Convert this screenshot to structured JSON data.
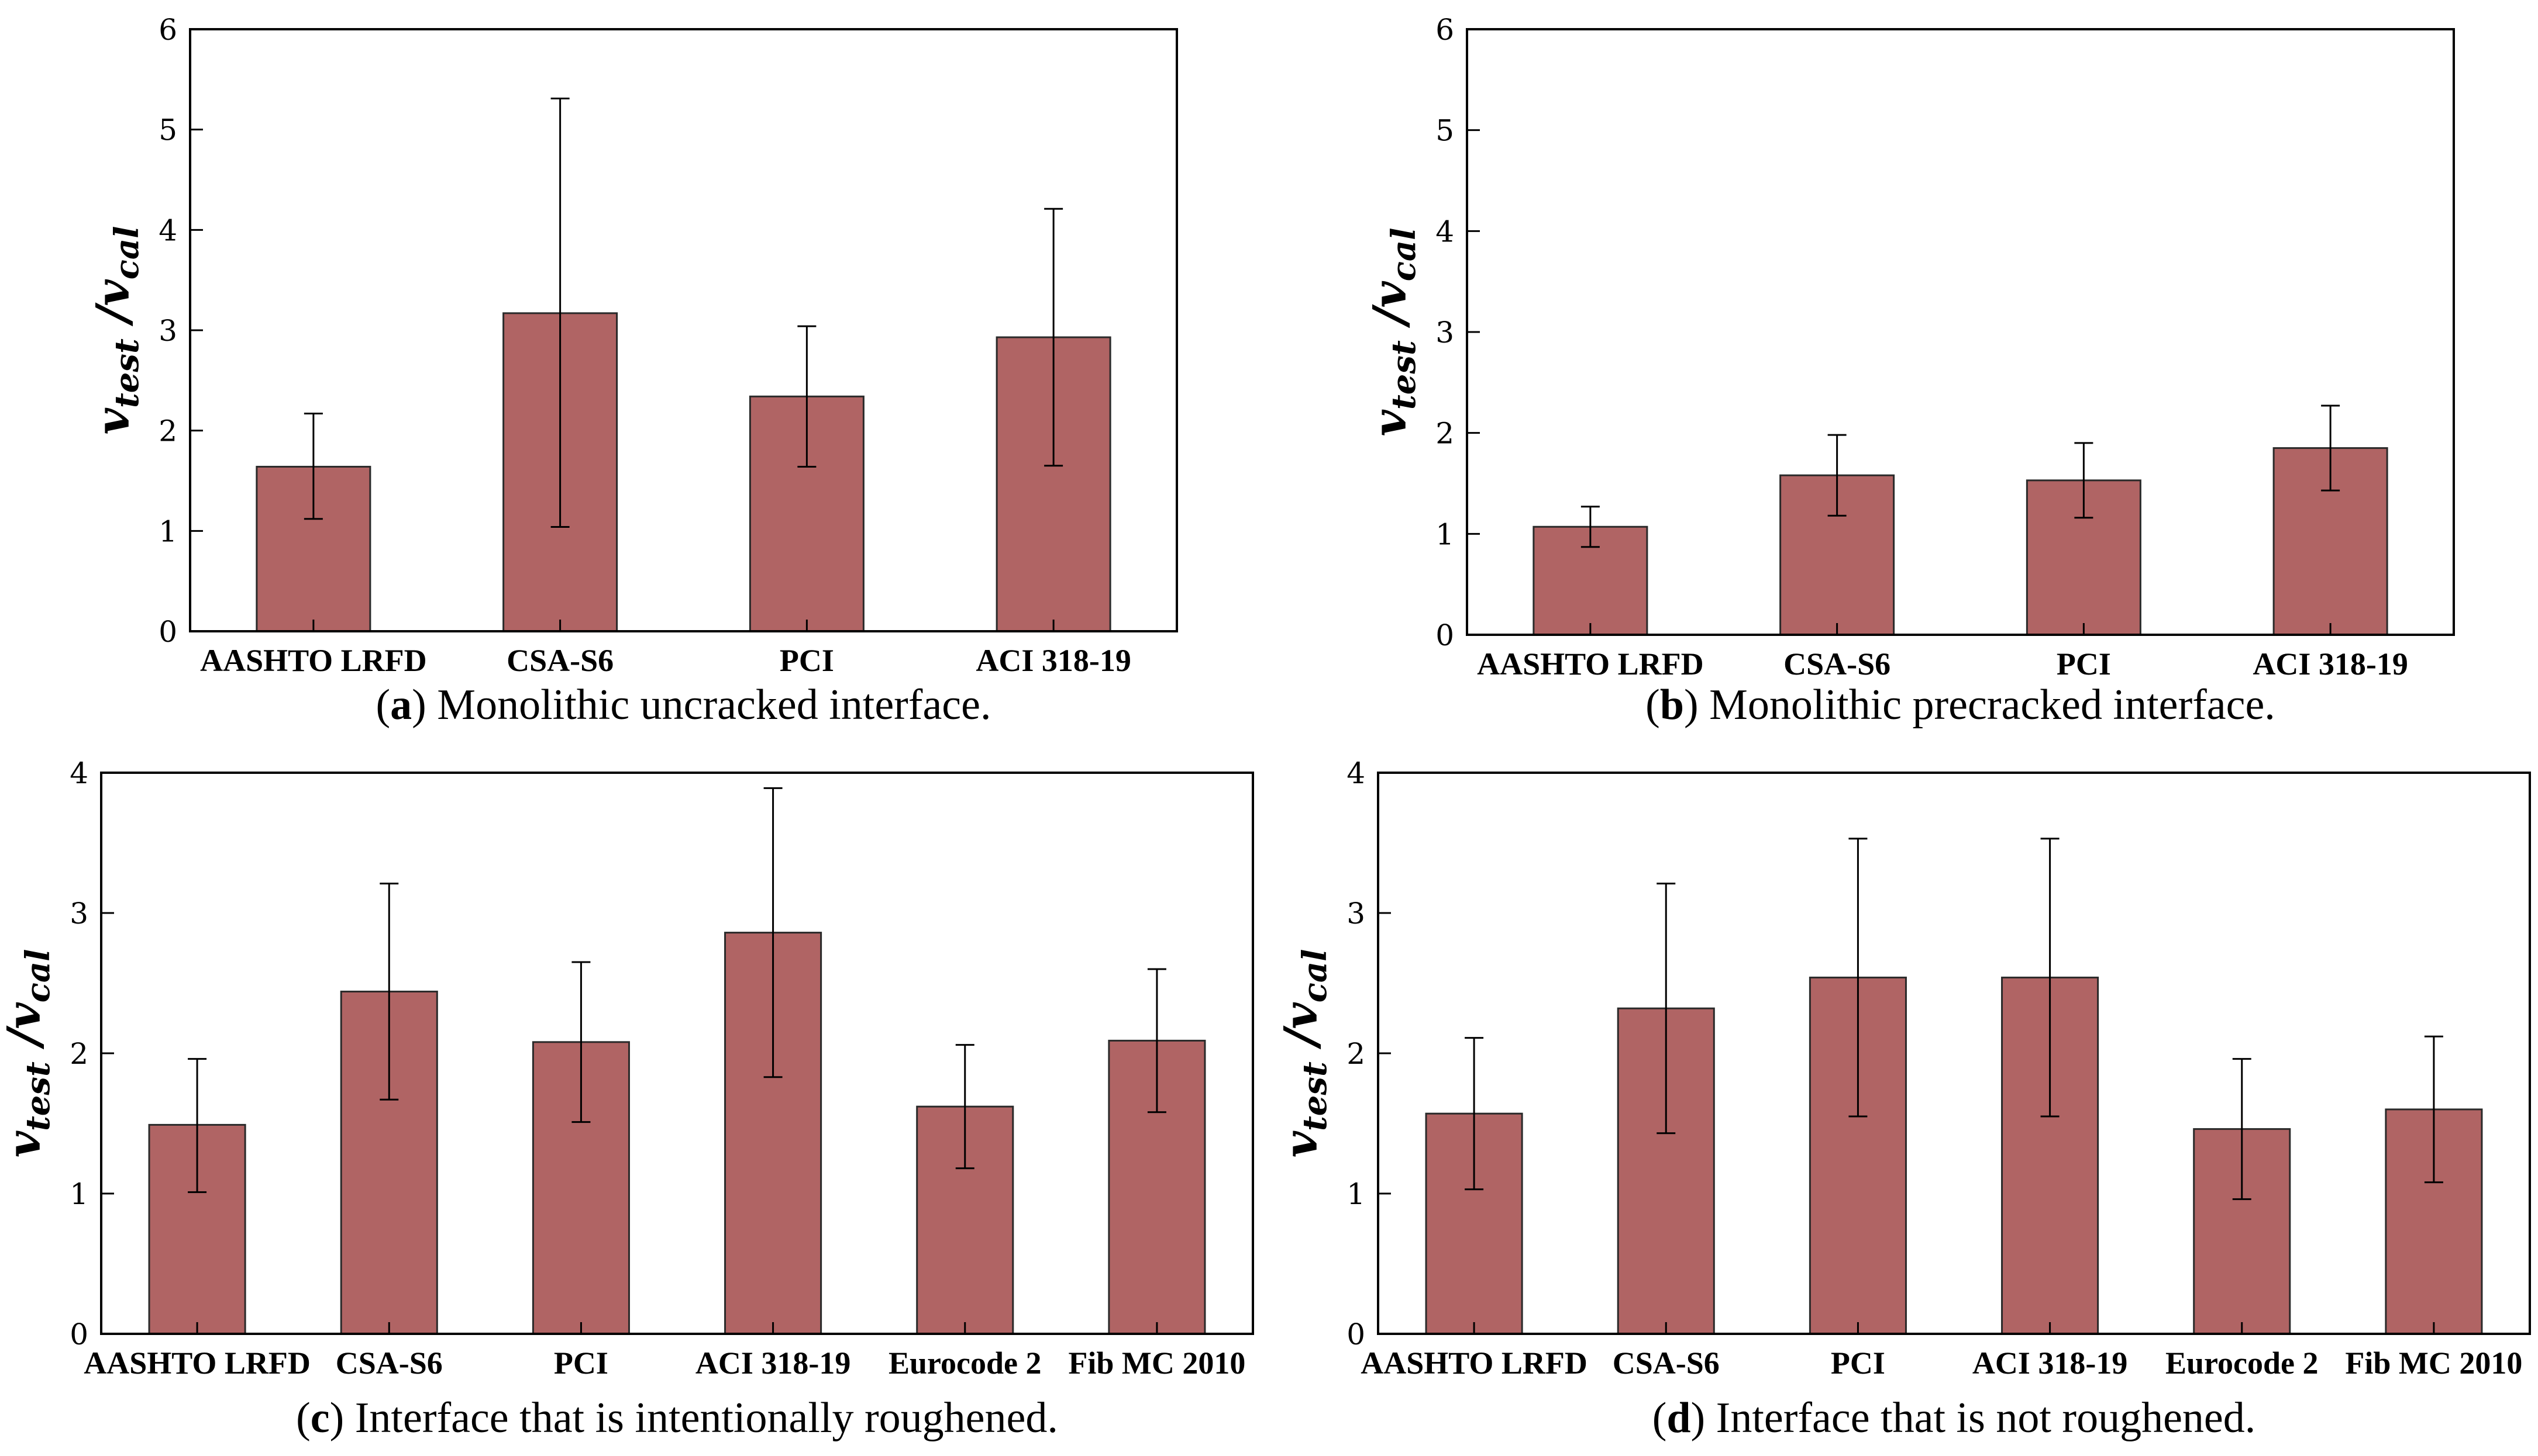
{
  "colors": {
    "bar": "#b06464",
    "bar_edge": "#2a2a2a",
    "axis": "#000000",
    "error_bar": "#000000"
  },
  "y_label": {
    "main": "v",
    "sub1": "test",
    "slash": " /",
    "main2": "v",
    "sub2": "cal"
  },
  "chart_data": [
    {
      "id": "a",
      "type": "bar",
      "caption_letter": "a",
      "caption_text": " Monolithic uncracked interface.",
      "categories": [
        "AASHTO LRFD",
        "CSA-S6",
        "PCI",
        "ACI 318-19"
      ],
      "values": [
        1.64,
        3.17,
        2.34,
        2.93
      ],
      "error_low": [
        1.12,
        1.04,
        1.64,
        1.65
      ],
      "error_high": [
        2.17,
        5.31,
        3.04,
        4.21
      ],
      "ylim": [
        0,
        6
      ],
      "yticks": [
        "0",
        "1",
        "2",
        "3",
        "4",
        "5",
        "6"
      ],
      "grid": false,
      "legend": false
    },
    {
      "id": "b",
      "type": "bar",
      "caption_letter": "b",
      "caption_text": " Monolithic precracked interface.",
      "categories": [
        "AASHTO LRFD",
        "CSA-S6",
        "PCI",
        "ACI 318-19"
      ],
      "values": [
        1.07,
        1.58,
        1.53,
        1.85
      ],
      "error_low": [
        0.87,
        1.18,
        1.16,
        1.43
      ],
      "error_high": [
        1.27,
        1.98,
        1.9,
        2.27
      ],
      "ylim": [
        0,
        6
      ],
      "yticks": [
        "0",
        "1",
        "2",
        "3",
        "4",
        "5",
        "6"
      ],
      "grid": false,
      "legend": false
    },
    {
      "id": "c",
      "type": "bar",
      "caption_letter": "c",
      "caption_text": " Interface that is intentionally roughened.",
      "categories": [
        "AASHTO LRFD",
        "CSA-S6",
        "PCI",
        "ACI 318-19",
        "Eurocode 2",
        "Fib MC 2010"
      ],
      "values": [
        1.49,
        2.44,
        2.08,
        2.86,
        1.62,
        2.09
      ],
      "error_low": [
        1.01,
        1.67,
        1.51,
        1.83,
        1.18,
        1.58
      ],
      "error_high": [
        1.96,
        3.21,
        2.65,
        3.89,
        2.06,
        2.6
      ],
      "ylim": [
        0,
        4
      ],
      "yticks": [
        "0",
        "1",
        "2",
        "3",
        "4"
      ],
      "grid": false,
      "legend": false
    },
    {
      "id": "d",
      "type": "bar",
      "caption_letter": "d",
      "caption_text": " Interface that is not roughened.",
      "categories": [
        "AASHTO LRFD",
        "CSA-S6",
        "PCI",
        "ACI 318-19",
        "Eurocode 2",
        "Fib MC 2010"
      ],
      "values": [
        1.57,
        2.32,
        2.54,
        2.54,
        1.46,
        1.6
      ],
      "error_low": [
        1.03,
        1.43,
        1.55,
        1.55,
        0.96,
        1.08
      ],
      "error_high": [
        2.11,
        3.21,
        3.53,
        3.53,
        1.96,
        2.12
      ],
      "ylim": [
        0,
        4
      ],
      "yticks": [
        "0",
        "1",
        "2",
        "3",
        "4"
      ],
      "grid": false,
      "legend": false
    }
  ]
}
